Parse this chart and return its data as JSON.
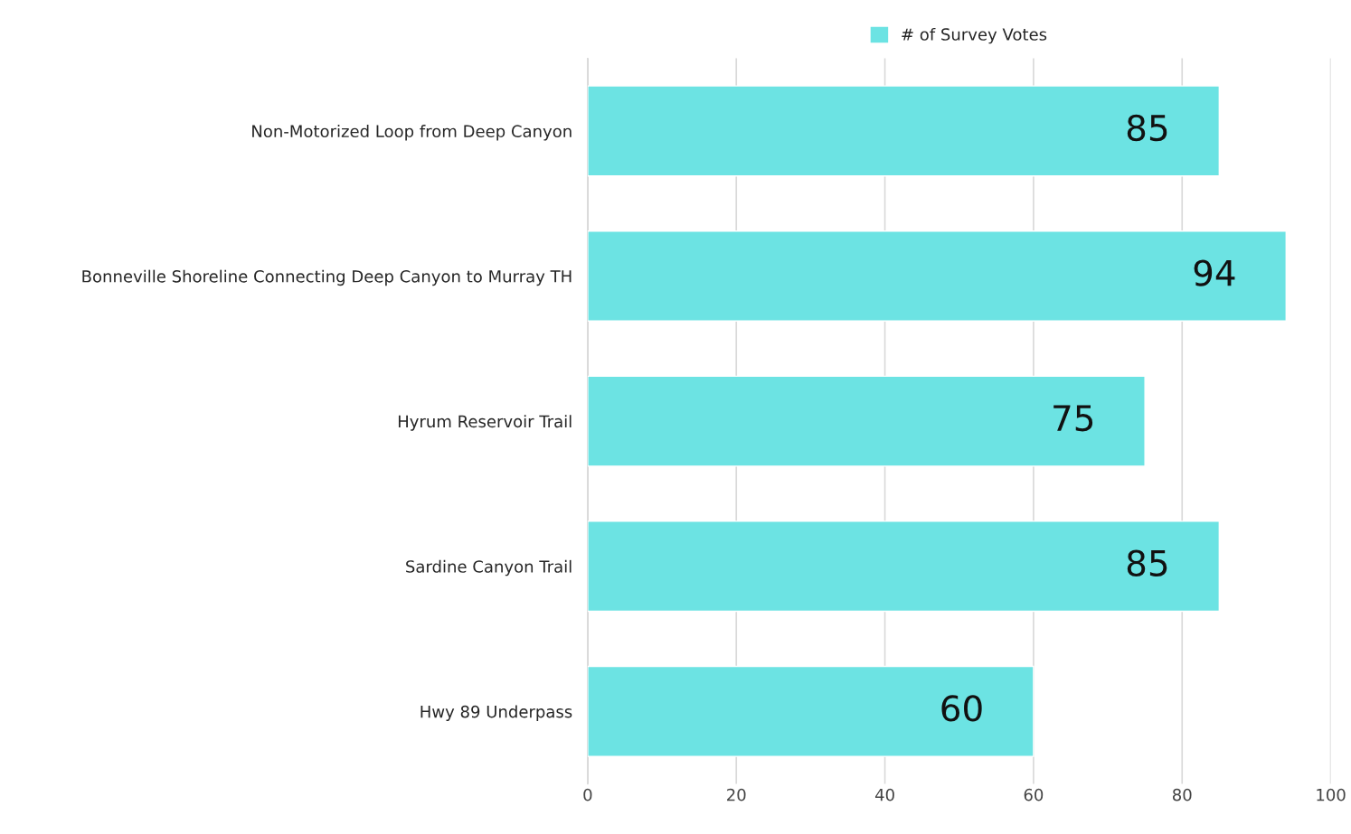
{
  "chart_data": {
    "type": "bar",
    "orientation": "horizontal",
    "categories": [
      "Non-Motorized Loop from Deep Canyon",
      "Bonneville Shoreline Connecting Deep Canyon to Murray TH",
      "Hyrum Reservoir Trail",
      "Sardine Canyon Trail",
      "Hwy 89 Underpass"
    ],
    "series": [
      {
        "name": "# of Survey Votes",
        "color": "#6ce3e3",
        "values": [
          85,
          94,
          75,
          85,
          60
        ]
      }
    ],
    "xlim": [
      0,
      100
    ],
    "xticks": [
      0,
      20,
      40,
      60,
      80,
      100
    ],
    "grid": "x",
    "legend": "top",
    "data_labels": true
  }
}
